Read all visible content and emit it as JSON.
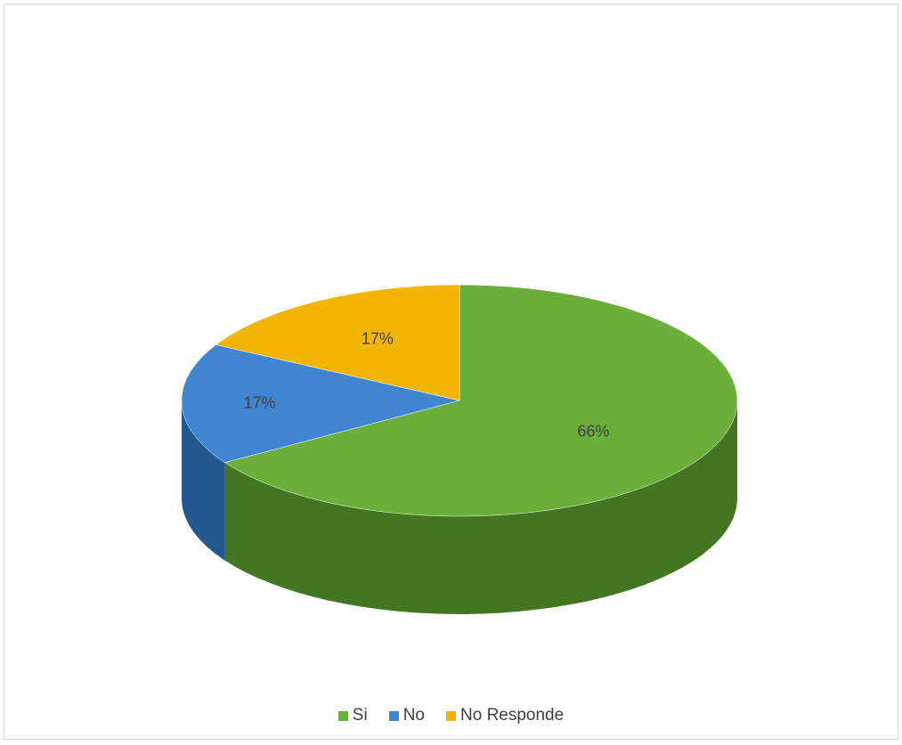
{
  "chart_data": {
    "type": "pie",
    "title": "",
    "categories": [
      "Si",
      "No",
      "No Responde"
    ],
    "values": [
      66,
      17,
      17
    ],
    "labels": [
      "66%",
      "17%",
      "17%"
    ],
    "colors": [
      "#6aaf3a",
      "#3f85cf",
      "#f3b600"
    ],
    "side_colors": [
      "#427622",
      "#24598f",
      "#a27a00"
    ],
    "legend_position": "bottom",
    "style": "3d"
  }
}
